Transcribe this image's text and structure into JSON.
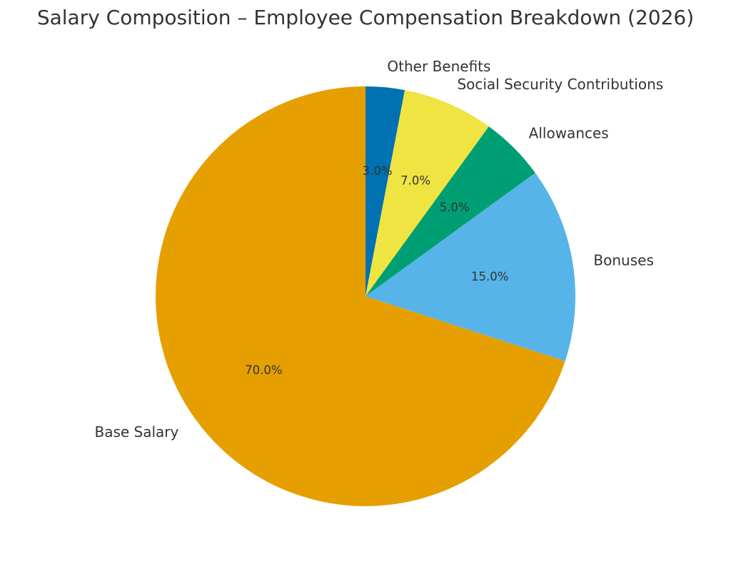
{
  "chart_data": {
    "type": "pie",
    "title": "Salary Composition – Employee Compensation Breakdown (2026)",
    "start_angle_deg": 90,
    "direction": "clockwise",
    "slices": [
      {
        "label": "Other Benefits",
        "value": 3.0,
        "pct_label": "3.0%",
        "color": "#0072B2"
      },
      {
        "label": "Social Security Contributions",
        "value": 7.0,
        "pct_label": "7.0%",
        "color": "#F0E442"
      },
      {
        "label": "Allowances",
        "value": 5.0,
        "pct_label": "5.0%",
        "color": "#009E73"
      },
      {
        "label": "Bonuses",
        "value": 15.0,
        "pct_label": "15.0%",
        "color": "#56B4E9"
      },
      {
        "label": "Base Salary",
        "value": 70.0,
        "pct_label": "70.0%",
        "color": "#E69F00"
      }
    ],
    "categories": [
      "Other Benefits",
      "Social Security Contributions",
      "Allowances",
      "Bonuses",
      "Base Salary"
    ],
    "values": [
      3.0,
      7.0,
      5.0,
      15.0,
      70.0
    ],
    "legend": "none (labels placed outside slices)"
  }
}
